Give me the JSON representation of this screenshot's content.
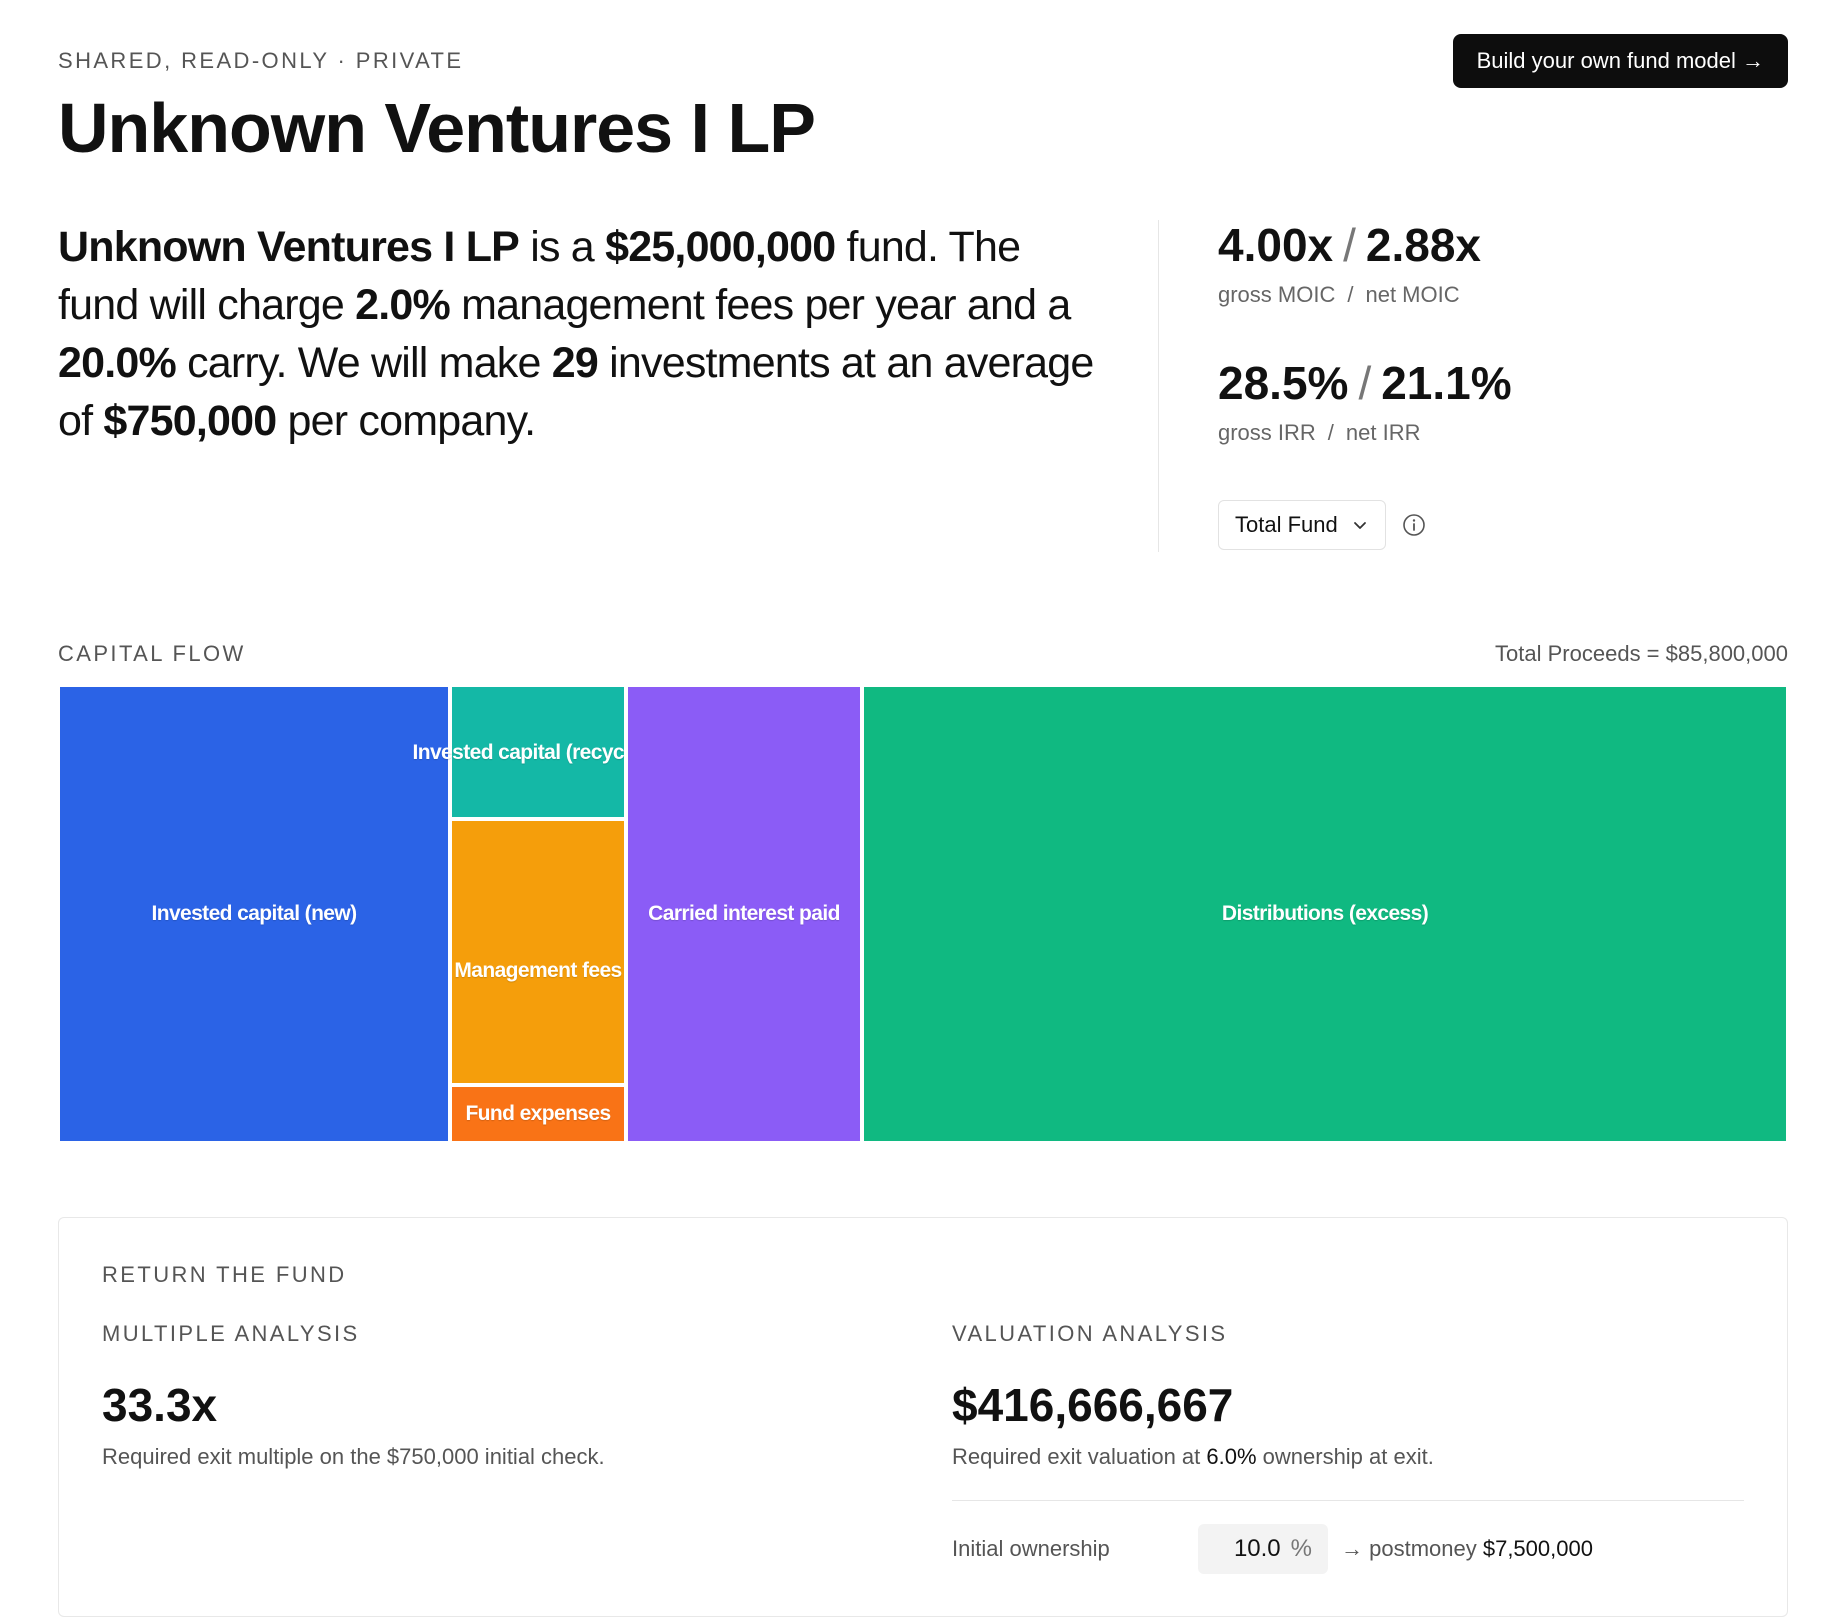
{
  "header": {
    "meta": "SHARED, READ-ONLY · PRIVATE",
    "title": "Unknown Ventures I LP",
    "cta_label": "Build your own fund model →"
  },
  "summary": {
    "fund_name": "Unknown Ventures I LP",
    "t1": " is a ",
    "fund_size": "$25,000,000",
    "t2": " fund. The fund will charge ",
    "mgmt_fee": "2.0%",
    "t3": " management fees per year and a ",
    "carry": "20.0%",
    "t4": " carry. We will make ",
    "num_investments": "29",
    "t5": " investments at an average of ",
    "avg_check": "$750,000",
    "t6": " per company."
  },
  "metrics": {
    "gross_moic": "4.00x",
    "net_moic": "2.88x",
    "gross_moic_label": "gross MOIC",
    "net_moic_label": "net MOIC",
    "gross_irr": "28.5%",
    "net_irr": "21.1%",
    "gross_irr_label": "gross IRR",
    "net_irr_label": "net IRR",
    "separator": "/"
  },
  "scope_select": {
    "value": "Total Fund"
  },
  "capital_flow": {
    "label": "CAPITAL FLOW",
    "total_proceeds": "Total Proceeds = $85,800,000",
    "tiles": [
      {
        "label": "Invested capital (new)",
        "color": "#2b63e6"
      },
      {
        "label": "Invested capital (recyc",
        "color": "#14b8a6"
      },
      {
        "label": "Management fees",
        "color": "#f59e0b"
      },
      {
        "label": "Fund expenses",
        "color": "#f97316"
      },
      {
        "label": "Carried interest paid",
        "color": "#8b5cf6"
      },
      {
        "label": "Distributions (excess)",
        "color": "#10b981"
      }
    ]
  },
  "return_the_fund": {
    "label": "RETURN THE FUND",
    "multiple": {
      "label": "MULTIPLE ANALYSIS",
      "value": "33.3x",
      "desc": "Required exit multiple on the $750,000 initial check."
    },
    "valuation": {
      "label": "VALUATION ANALYSIS",
      "value": "$416,666,667",
      "desc_pre": "Required exit valuation at ",
      "ownership_at_exit": "6.0%",
      "desc_post": " ownership at exit.",
      "initial_ownership_label": "Initial ownership",
      "initial_ownership_value": "10.0",
      "unit": "%",
      "postmoney_pre": "→ postmoney ",
      "postmoney_value": "$7,500,000"
    }
  }
}
